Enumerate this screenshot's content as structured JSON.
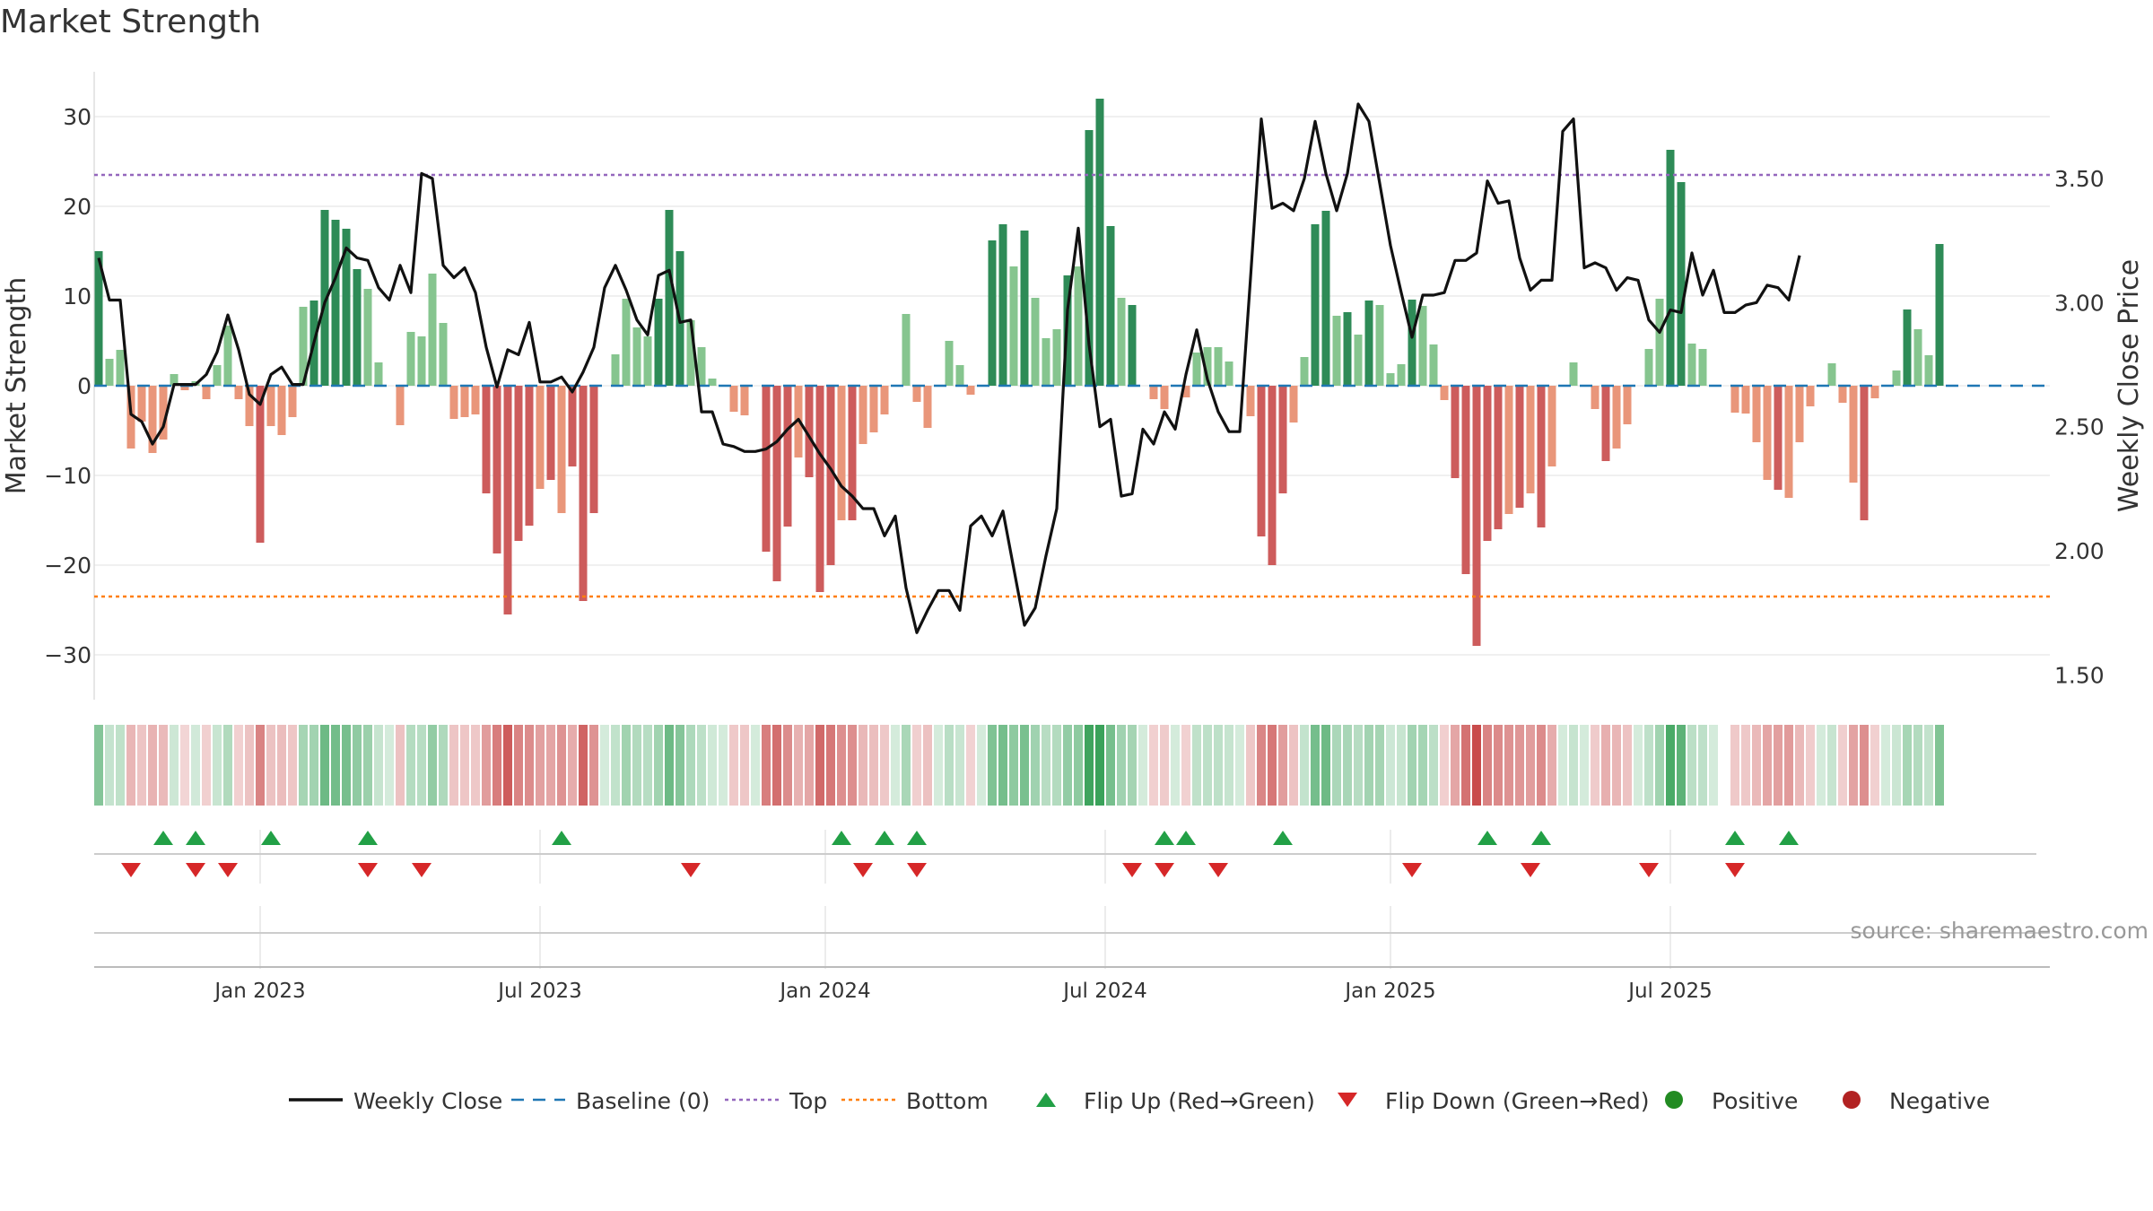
{
  "title": "Market Strength",
  "source": "source: sharemaestro.com",
  "colors": {
    "strong_pos": "#2e8b57",
    "light_pos": "#86c58f",
    "strong_neg": "#cd5c5c",
    "light_neg": "#e9967a",
    "close_line": "#111111",
    "baseline": "#1f77b4",
    "top": "#9467bd",
    "bottom": "#ff7f0e",
    "flip_up": "#22a046",
    "flip_down": "#d62728",
    "positive_dot": "#228b22",
    "negative_dot": "#b22222"
  },
  "chart_data": {
    "type": "bar",
    "title": "Market Strength",
    "ylabel": "Market Strength",
    "y2label": "Weekly Close Price",
    "ylim": [
      -35,
      35
    ],
    "y2lim": [
      1.4,
      3.93
    ],
    "yticks": [
      30,
      20,
      10,
      0,
      -10,
      -20,
      -30
    ],
    "ytick_labels": [
      "30",
      "20",
      "10",
      "0",
      "−10",
      "−20",
      "−30"
    ],
    "y2ticks": [
      3.5,
      3.0,
      2.5,
      2.0,
      1.5
    ],
    "y2tick_labels": [
      "3.50",
      "3.00",
      "2.50",
      "2.00",
      "1.50"
    ],
    "xticks": [
      {
        "label": "Jan 2023",
        "week": 15
      },
      {
        "label": "Jul 2023",
        "week": 41
      },
      {
        "label": "Jan 2024",
        "week": 67.5
      },
      {
        "label": "Jul 2024",
        "week": 93.5
      },
      {
        "label": "Jan 2025",
        "week": 120
      },
      {
        "label": "Jul 2025",
        "week": 146
      }
    ],
    "top_line": 23.5,
    "bottom_line": -23.5,
    "baseline": 0,
    "strength": [
      15,
      3,
      4,
      -7,
      -4,
      -7.5,
      -6,
      1.3,
      -0.5,
      0.5,
      -1.5,
      2.3,
      6.7,
      -1.5,
      -4.5,
      -17.5,
      -4.5,
      -5.5,
      -3.5,
      8.8,
      9.5,
      19.6,
      18.5,
      17.5,
      13,
      10.8,
      2.6,
      0,
      -4.4,
      6,
      5.5,
      12.5,
      7,
      -3.7,
      -3.5,
      -3.2,
      -12,
      -18.7,
      -25.5,
      -17.3,
      -15.6,
      -11.5,
      -10.5,
      -14.2,
      -9,
      -24,
      -14.2,
      0,
      3.5,
      9.7,
      6.5,
      5.5,
      9.7,
      19.6,
      15,
      7.3,
      4.3,
      0.8,
      0,
      -2.9,
      -3.3,
      0,
      -18.5,
      -21.8,
      -15.7,
      -8,
      -10.2,
      -23,
      -20,
      -15,
      -15,
      -6.5,
      -5.2,
      -3.2,
      0,
      8,
      -1.8,
      -4.7,
      0,
      5,
      2.3,
      -1,
      0,
      16.2,
      18,
      13.3,
      17.3,
      9.8,
      5.3,
      6.3,
      12.3,
      13.3,
      28.5,
      32,
      17.8,
      9.8,
      9,
      0,
      -1.5,
      -2.6,
      0,
      -1.3,
      3.7,
      4.3,
      4.3,
      2.7,
      0,
      -3.4,
      -16.8,
      -20,
      -12,
      -4.1,
      3.2,
      18,
      19.5,
      7.8,
      8.2,
      5.7,
      9.5,
      9,
      1.4,
      2.4,
      9.6,
      8.9,
      4.6,
      -1.6,
      -10.3,
      -21,
      -29,
      -17.3,
      -16,
      -14.3,
      -13.6,
      -12,
      -15.8,
      -9,
      0,
      2.6,
      0,
      -2.6,
      -8.4,
      -7,
      -4.3,
      0,
      4.1,
      9.7,
      26.3,
      22.7,
      4.7,
      4.1,
      0,
      0,
      -3,
      -3.1,
      -6.3,
      -10.5,
      -11.6,
      -12.5,
      -6.3,
      -2.3,
      0,
      2.5,
      -1.9,
      -10.8,
      -15,
      -1.4,
      0,
      1.7,
      8.5,
      6.3,
      3.4,
      15.8
    ],
    "weekly_close": [
      3.18,
      3.01,
      3.01,
      2.55,
      2.52,
      2.43,
      2.5,
      2.67,
      2.67,
      2.67,
      2.71,
      2.8,
      2.95,
      2.81,
      2.63,
      2.59,
      2.71,
      2.74,
      2.67,
      2.67,
      2.84,
      3.0,
      3.1,
      3.22,
      3.18,
      3.17,
      3.06,
      3.01,
      3.15,
      3.04,
      3.52,
      3.5,
      3.15,
      3.1,
      3.14,
      3.04,
      2.82,
      2.66,
      2.81,
      2.79,
      2.92,
      2.68,
      2.68,
      2.7,
      2.64,
      2.72,
      2.82,
      3.06,
      3.15,
      3.05,
      2.93,
      2.87,
      3.11,
      3.13,
      2.92,
      2.93,
      2.56,
      2.56,
      2.43,
      2.42,
      2.4,
      2.4,
      2.41,
      2.44,
      2.49,
      2.53,
      2.46,
      2.39,
      2.33,
      2.26,
      2.22,
      2.17,
      2.17,
      2.06,
      2.14,
      1.85,
      1.67,
      1.76,
      1.84,
      1.84,
      1.76,
      2.1,
      2.14,
      2.06,
      2.16,
      1.93,
      1.7,
      1.77,
      1.98,
      2.17,
      2.97,
      3.3,
      2.83,
      2.5,
      2.53,
      2.22,
      2.23,
      2.49,
      2.43,
      2.56,
      2.49,
      2.71,
      2.89,
      2.69,
      2.56,
      2.48,
      2.48,
      3.1,
      3.74,
      3.38,
      3.4,
      3.37,
      3.5,
      3.73,
      3.52,
      3.37,
      3.52,
      3.8,
      3.73,
      3.48,
      3.23,
      3.04,
      2.86,
      3.03,
      3.03,
      3.04,
      3.17,
      3.17,
      3.2,
      3.49,
      3.4,
      3.41,
      3.18,
      3.05,
      3.09,
      3.09,
      3.69,
      3.74,
      3.14,
      3.16,
      3.14,
      3.05,
      3.1,
      3.09,
      2.93,
      2.88,
      2.97,
      2.96,
      3.2,
      3.03,
      3.13,
      2.96,
      2.96,
      2.99,
      3.0,
      3.07,
      3.06,
      3.01,
      3.19
    ],
    "heat_strip": "per-week strength intensity band below the main panel",
    "flip_up_weeks": [
      6,
      9,
      16,
      25,
      43,
      69,
      73,
      76,
      99,
      101,
      110,
      129,
      134,
      152,
      157
    ],
    "flip_down_weeks": [
      3,
      9,
      12,
      25,
      30,
      55,
      71,
      76,
      96,
      99,
      104,
      122,
      133,
      144,
      152
    ],
    "legend": [
      {
        "label": "Weekly Close",
        "kind": "line"
      },
      {
        "label": "Baseline (0)",
        "kind": "dash"
      },
      {
        "label": "Top",
        "kind": "dot-purple"
      },
      {
        "label": "Bottom",
        "kind": "dot-orange"
      },
      {
        "label": "Flip Up (Red→Green)",
        "kind": "tri-up"
      },
      {
        "label": "Flip Down (Green→Red)",
        "kind": "tri-down"
      },
      {
        "label": "Positive",
        "kind": "dot-green"
      },
      {
        "label": "Negative",
        "kind": "dot-red"
      }
    ]
  }
}
